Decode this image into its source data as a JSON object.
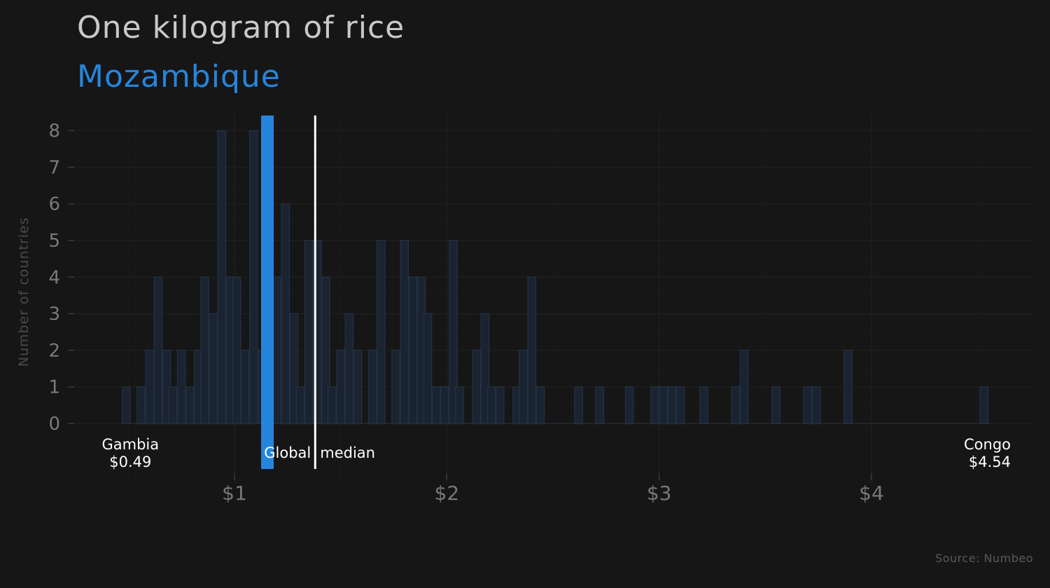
{
  "title": "One kilogram of rice",
  "subtitle": "Mozambique",
  "source": "Source: Numbeo",
  "colors": {
    "background": "#161616",
    "highlight": "#2585dc",
    "bar_fill": "#1a2330",
    "bar_stroke": "#243246",
    "median": "#ffffff"
  },
  "chart_data": {
    "type": "bar",
    "ylabel": "Number of countries",
    "xlabel": "",
    "x_ticks": [
      {
        "value": 1,
        "label": "$1"
      },
      {
        "value": 2,
        "label": "$2"
      },
      {
        "value": 3,
        "label": "$3"
      },
      {
        "value": 4,
        "label": "$4"
      }
    ],
    "y_ticks": [
      0,
      1,
      2,
      3,
      4,
      5,
      6,
      7,
      8
    ],
    "xlim": [
      0.25,
      4.7
    ],
    "ylim": [
      0,
      8.4
    ],
    "bin_width": 0.0375,
    "bins": [
      {
        "x": 0.49,
        "y": 1
      },
      {
        "x": 0.56,
        "y": 1
      },
      {
        "x": 0.6,
        "y": 2
      },
      {
        "x": 0.64,
        "y": 4
      },
      {
        "x": 0.68,
        "y": 2
      },
      {
        "x": 0.71,
        "y": 1
      },
      {
        "x": 0.75,
        "y": 2
      },
      {
        "x": 0.79,
        "y": 1
      },
      {
        "x": 0.83,
        "y": 2
      },
      {
        "x": 0.86,
        "y": 4
      },
      {
        "x": 0.9,
        "y": 3
      },
      {
        "x": 0.94,
        "y": 8
      },
      {
        "x": 0.98,
        "y": 4
      },
      {
        "x": 1.01,
        "y": 4
      },
      {
        "x": 1.05,
        "y": 2
      },
      {
        "x": 1.09,
        "y": 8
      },
      {
        "x": 1.13,
        "y": 2
      },
      {
        "x": 1.2,
        "y": 4
      },
      {
        "x": 1.24,
        "y": 6
      },
      {
        "x": 1.28,
        "y": 3
      },
      {
        "x": 1.31,
        "y": 1
      },
      {
        "x": 1.35,
        "y": 5
      },
      {
        "x": 1.39,
        "y": 5
      },
      {
        "x": 1.43,
        "y": 4
      },
      {
        "x": 1.46,
        "y": 1
      },
      {
        "x": 1.5,
        "y": 2
      },
      {
        "x": 1.54,
        "y": 3
      },
      {
        "x": 1.58,
        "y": 2
      },
      {
        "x": 1.65,
        "y": 2
      },
      {
        "x": 1.69,
        "y": 5
      },
      {
        "x": 1.76,
        "y": 2
      },
      {
        "x": 1.8,
        "y": 5
      },
      {
        "x": 1.84,
        "y": 4
      },
      {
        "x": 1.88,
        "y": 4
      },
      {
        "x": 1.91,
        "y": 3
      },
      {
        "x": 1.95,
        "y": 1
      },
      {
        "x": 1.99,
        "y": 1
      },
      {
        "x": 2.03,
        "y": 5
      },
      {
        "x": 2.06,
        "y": 1
      },
      {
        "x": 2.14,
        "y": 2
      },
      {
        "x": 2.18,
        "y": 3
      },
      {
        "x": 2.21,
        "y": 1
      },
      {
        "x": 2.25,
        "y": 1
      },
      {
        "x": 2.33,
        "y": 1
      },
      {
        "x": 2.36,
        "y": 2
      },
      {
        "x": 2.4,
        "y": 4
      },
      {
        "x": 2.44,
        "y": 1
      },
      {
        "x": 2.62,
        "y": 1
      },
      {
        "x": 2.72,
        "y": 1
      },
      {
        "x": 2.86,
        "y": 1
      },
      {
        "x": 2.98,
        "y": 1
      },
      {
        "x": 3.02,
        "y": 1
      },
      {
        "x": 3.06,
        "y": 1
      },
      {
        "x": 3.1,
        "y": 1
      },
      {
        "x": 3.21,
        "y": 1
      },
      {
        "x": 3.36,
        "y": 1
      },
      {
        "x": 3.4,
        "y": 2
      },
      {
        "x": 3.55,
        "y": 1
      },
      {
        "x": 3.7,
        "y": 1
      },
      {
        "x": 3.74,
        "y": 1
      },
      {
        "x": 3.89,
        "y": 2
      },
      {
        "x": 4.53,
        "y": 1
      }
    ],
    "highlight": {
      "name": "Mozambique",
      "x": 1.155
    },
    "median": {
      "label": "Global median",
      "x": 1.38
    },
    "min_annotation": {
      "country": "Gambia",
      "value_label": "$0.49",
      "x": 0.49
    },
    "max_annotation": {
      "country": "Congo",
      "value_label": "$4.54",
      "x": 4.54
    }
  }
}
